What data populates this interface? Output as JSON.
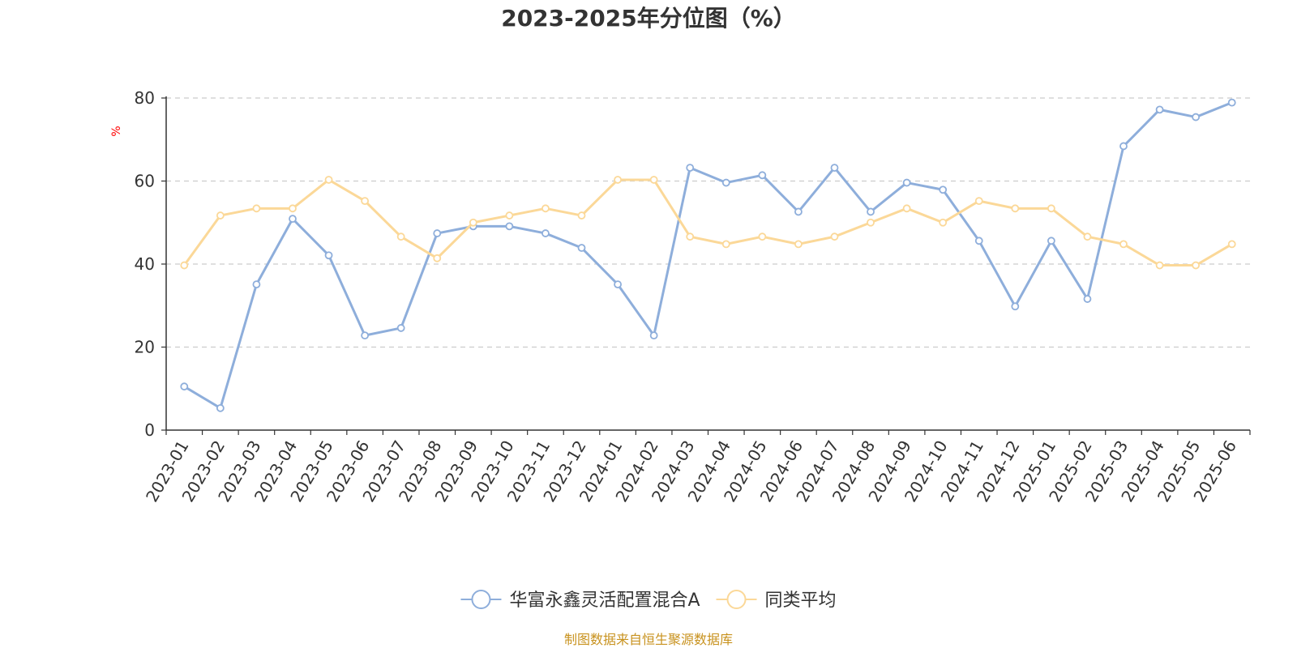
{
  "chart_data": {
    "type": "line",
    "title": "2023-2025年分位图（%）",
    "ylabel": "%",
    "ylim": [
      0,
      80
    ],
    "yticks": [
      0,
      20,
      40,
      60,
      80
    ],
    "grid": true,
    "legend_position": "bottom-center",
    "categories": [
      "2023-01",
      "2023-02",
      "2023-03",
      "2023-04",
      "2023-05",
      "2023-06",
      "2023-07",
      "2023-08",
      "2023-09",
      "2023-10",
      "2023-11",
      "2023-12",
      "2024-01",
      "2024-02",
      "2024-03",
      "2024-04",
      "2024-05",
      "2024-06",
      "2024-07",
      "2024-08",
      "2024-09",
      "2024-10",
      "2024-11",
      "2024-12",
      "2025-01",
      "2025-02",
      "2025-03",
      "2025-04",
      "2025-05",
      "2025-06"
    ],
    "series": [
      {
        "name": "华富永鑫灵活配置混合A",
        "color": "#8eaedb",
        "values": [
          10.5,
          5.3,
          35.1,
          50.9,
          42.1,
          22.8,
          24.6,
          47.4,
          49.1,
          49.1,
          47.4,
          43.9,
          35.1,
          22.8,
          63.2,
          59.6,
          61.4,
          52.6,
          63.2,
          52.6,
          59.6,
          57.9,
          45.6,
          29.8,
          45.6,
          31.6,
          68.4,
          77.2,
          75.4,
          78.9
        ]
      },
      {
        "name": "同类平均",
        "color": "#fbd898",
        "values": [
          39.7,
          51.7,
          53.4,
          53.4,
          60.3,
          55.2,
          46.6,
          41.4,
          50.0,
          51.7,
          53.4,
          51.7,
          60.3,
          60.3,
          46.6,
          44.8,
          46.6,
          44.8,
          46.6,
          50.0,
          53.4,
          50.0,
          55.2,
          53.4,
          53.4,
          46.6,
          44.8,
          39.7,
          39.7,
          44.8
        ]
      }
    ]
  },
  "source_text": "制图数据来自恒生聚源数据库",
  "colors": {
    "axis": "#333333",
    "grid": "#cccccc",
    "source": "#c8921e",
    "unit": "#ff0000"
  }
}
